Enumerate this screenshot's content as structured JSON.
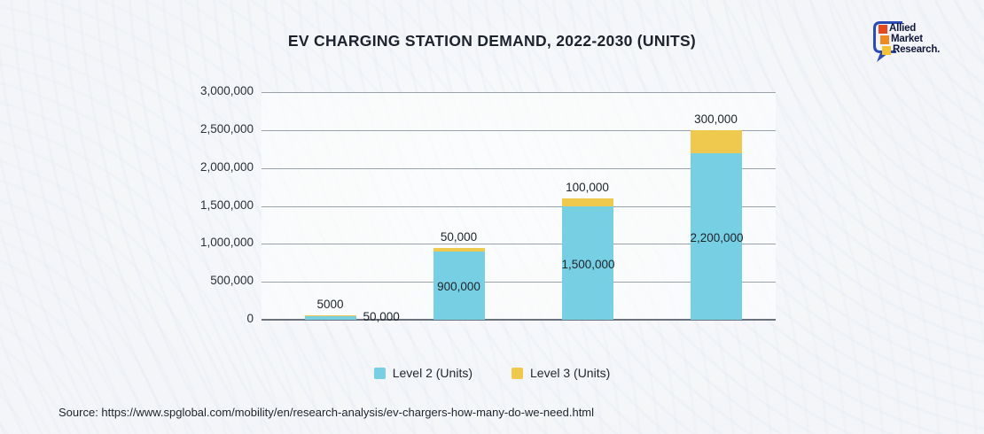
{
  "header": {
    "title": "EV CHARGING STATION DEMAND, 2022-2030 (UNITS)"
  },
  "logo": {
    "bubble_color": "#2b4bb5",
    "lines": [
      {
        "text": "Allied",
        "square_color": "#e4491f"
      },
      {
        "text": "Market",
        "square_color": "#ef8a21"
      },
      {
        "text": "Research.",
        "square_color": "#f4c233"
      }
    ]
  },
  "chart_data": {
    "type": "bar",
    "stacked": true,
    "title": "EV CHARGING STATION DEMAND, 2022-2030 (UNITS)",
    "grid": true,
    "legend_position": "bottom",
    "x_axis_labels_visible": false,
    "categories": [
      "",
      "",
      "",
      ""
    ],
    "y_axis": {
      "min": 0,
      "max": 3000000,
      "tick_labels": [
        "3,000,000",
        "2,500,000",
        "2,000,000",
        "1,500,000",
        "1,000,000",
        "500,000",
        "0"
      ]
    },
    "series": [
      {
        "name": "Level 2 (Units)",
        "color": "#76cfe3",
        "values": [
          50000,
          900000,
          1500000,
          2200000
        ],
        "value_labels": [
          "50,000",
          "900,000",
          "1,500,000",
          "2,200,000"
        ]
      },
      {
        "name": "Level 3 (Units)",
        "color": "#eec94e",
        "values": [
          5000,
          50000,
          100000,
          300000
        ],
        "value_labels": [
          "5000",
          "50,000",
          "100,000",
          "300,000"
        ]
      }
    ]
  },
  "footer": {
    "source": "Source: https://www.spglobal.com/mobility/en/research-analysis/ev-chargers-how-many-do-we-need.html"
  }
}
